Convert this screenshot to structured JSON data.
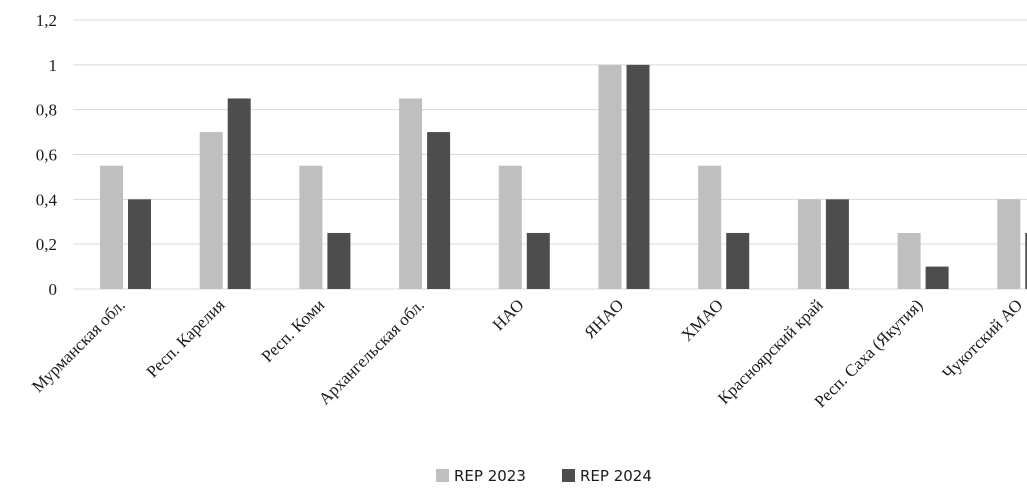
{
  "chart_data": {
    "type": "bar",
    "categories": [
      "Мурманская обл.",
      "Респ. Карелия",
      "Респ. Коми",
      "Архангельская обл.",
      "НАО",
      "ЯНАО",
      "ХМАО",
      "Красноярский край",
      "Респ. Саха (Якутия)",
      "Чукотский АО"
    ],
    "series": [
      {
        "name": "REP 2023",
        "color": "#bfbfbf",
        "values": [
          0.55,
          0.7,
          0.55,
          0.85,
          0.55,
          1.0,
          0.55,
          0.4,
          0.25,
          0.4
        ]
      },
      {
        "name": "REP 2024",
        "color": "#4d4d4d",
        "values": [
          0.4,
          0.85,
          0.25,
          0.7,
          0.25,
          1.0,
          0.25,
          0.4,
          0.1,
          0.25
        ]
      }
    ],
    "yticks": [
      "0",
      "0,2",
      "0,4",
      "0,6",
      "0,8",
      "1",
      "1,2"
    ],
    "ytick_values": [
      0,
      0.2,
      0.4,
      0.6,
      0.8,
      1.0,
      1.2
    ],
    "ylim": [
      0,
      1.2
    ],
    "grid": true,
    "legend_position": "bottom-center",
    "title": "",
    "xlabel": "",
    "ylabel": ""
  }
}
